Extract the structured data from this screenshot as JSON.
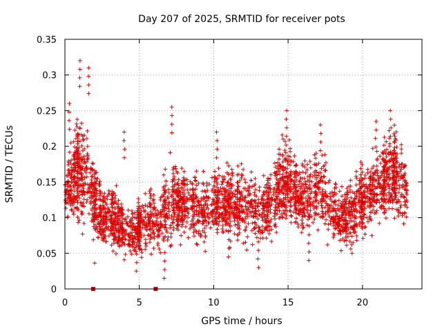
{
  "chart_data": {
    "type": "scatter",
    "title": "Day 207 of 2025, SRMTID for receiver pots",
    "xlabel": "GPS time / hours",
    "ylabel": "SRMTID / TECUs",
    "xlim": [
      0,
      24
    ],
    "ylim": [
      0,
      0.35
    ],
    "x_ticks": [
      0,
      5,
      10,
      15,
      20
    ],
    "x_tick_labels": [
      "0",
      "5",
      "10",
      "15",
      "20"
    ],
    "y_ticks": [
      0,
      0.05,
      0.1,
      0.15,
      0.2,
      0.25,
      0.3,
      0.35
    ],
    "y_tick_labels": [
      "0",
      "0.05",
      "0.1",
      "0.15",
      "0.2",
      "0.25",
      "0.3",
      "0.35"
    ],
    "grid": true,
    "marker": "plus",
    "color": "#e00000",
    "gap_markers_x": [
      1.9,
      6.1
    ],
    "series": [
      {
        "name": "pots",
        "profile_x": [
          0,
          0.5,
          1,
          1.5,
          2,
          2.5,
          3,
          3.5,
          4,
          4.5,
          5,
          5.5,
          6,
          6.5,
          7,
          7.5,
          8,
          8.5,
          9,
          9.5,
          10,
          10.5,
          11,
          11.5,
          12,
          12.5,
          13,
          13.5,
          14,
          14.5,
          15,
          15.5,
          16,
          16.5,
          17,
          17.5,
          18,
          18.5,
          19,
          19.5,
          20,
          20.5,
          21,
          21.5,
          22,
          22.5,
          23
        ],
        "profile_mean": [
          0.13,
          0.15,
          0.16,
          0.15,
          0.12,
          0.1,
          0.1,
          0.09,
          0.085,
          0.08,
          0.085,
          0.09,
          0.095,
          0.1,
          0.11,
          0.115,
          0.12,
          0.115,
          0.11,
          0.11,
          0.115,
          0.12,
          0.12,
          0.115,
          0.12,
          0.11,
          0.1,
          0.11,
          0.12,
          0.14,
          0.15,
          0.13,
          0.12,
          0.13,
          0.14,
          0.13,
          0.11,
          0.095,
          0.1,
          0.11,
          0.12,
          0.13,
          0.14,
          0.15,
          0.16,
          0.15,
          0.14
        ],
        "profile_spread": [
          0.04,
          0.05,
          0.06,
          0.05,
          0.04,
          0.035,
          0.035,
          0.035,
          0.035,
          0.03,
          0.03,
          0.03,
          0.035,
          0.04,
          0.045,
          0.04,
          0.035,
          0.035,
          0.035,
          0.04,
          0.04,
          0.04,
          0.04,
          0.04,
          0.04,
          0.04,
          0.035,
          0.04,
          0.04,
          0.045,
          0.045,
          0.04,
          0.04,
          0.04,
          0.045,
          0.04,
          0.035,
          0.03,
          0.035,
          0.04,
          0.04,
          0.04,
          0.045,
          0.045,
          0.05,
          0.045,
          0.04
        ],
        "point_count": 2200,
        "peaks": [
          {
            "x": 1.0,
            "y": 0.32
          },
          {
            "x": 1.6,
            "y": 0.31
          },
          {
            "x": 7.2,
            "y": 0.255
          },
          {
            "x": 14.9,
            "y": 0.25
          },
          {
            "x": 21.9,
            "y": 0.25
          },
          {
            "x": 0.3,
            "y": 0.26
          },
          {
            "x": 4.0,
            "y": 0.22
          },
          {
            "x": 10.2,
            "y": 0.22
          },
          {
            "x": 17.2,
            "y": 0.23
          },
          {
            "x": 20.9,
            "y": 0.235
          }
        ],
        "troughs": [
          {
            "x": 4.8,
            "y": 0.025
          },
          {
            "x": 6.7,
            "y": 0.015
          },
          {
            "x": 13.0,
            "y": 0.03
          },
          {
            "x": 16.4,
            "y": 0.04
          },
          {
            "x": 11.0,
            "y": 0.045
          },
          {
            "x": 19.3,
            "y": 0.05
          }
        ]
      }
    ]
  }
}
